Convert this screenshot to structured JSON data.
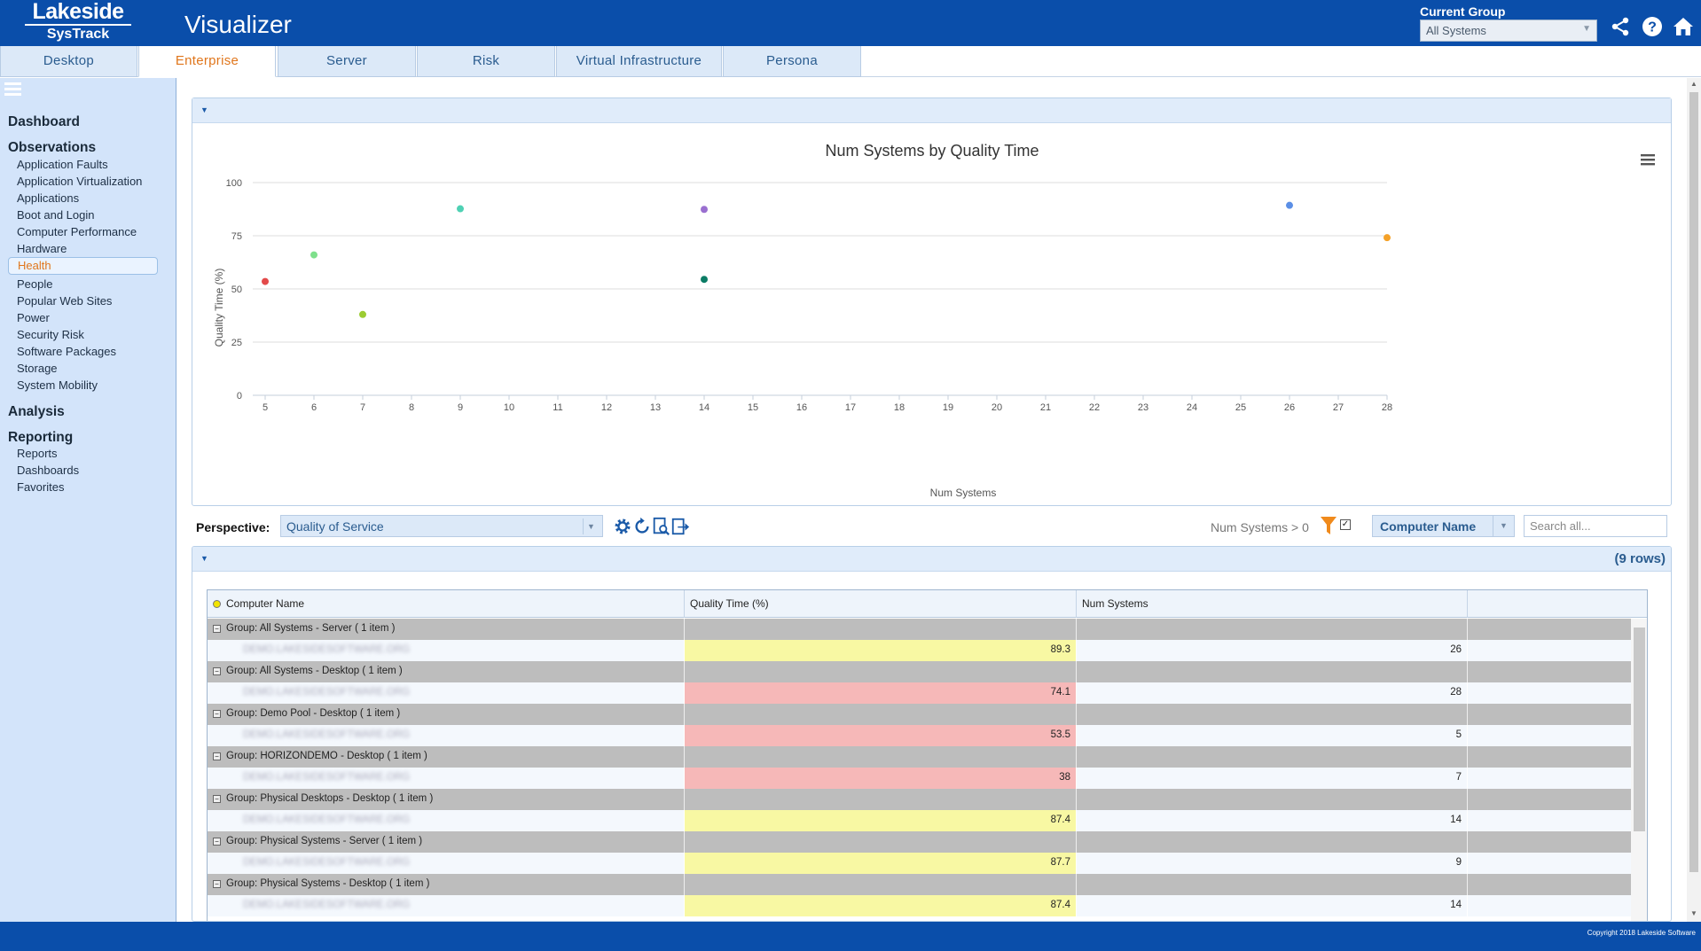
{
  "header": {
    "brand": "Lakeside",
    "product": "SysTrack",
    "title": "Visualizer",
    "group_label": "Current Group",
    "group_value": "All Systems",
    "icons": [
      "share-icon",
      "help-icon",
      "home-icon"
    ]
  },
  "tabs": [
    {
      "label": "Desktop",
      "active": false
    },
    {
      "label": "Enterprise",
      "active": true
    },
    {
      "label": "Server",
      "active": false
    },
    {
      "label": "Risk",
      "active": false
    },
    {
      "label": "Virtual Infrastructure",
      "active": false
    },
    {
      "label": "Persona",
      "active": false
    }
  ],
  "sidebar": {
    "dashboard": "Dashboard",
    "observations": "Observations",
    "observation_items": [
      "Application Faults",
      "Application Virtualization",
      "Applications",
      "Boot and Login",
      "Computer Performance",
      "Hardware",
      "Health",
      "People",
      "Popular Web Sites",
      "Power",
      "Security Risk",
      "Software Packages",
      "Storage",
      "System Mobility"
    ],
    "active_item": "Health",
    "analysis": "Analysis",
    "reporting": "Reporting",
    "reporting_items": [
      "Reports",
      "Dashboards",
      "Favorites"
    ]
  },
  "chart_data": {
    "type": "scatter",
    "title": "Num Systems by Quality Time",
    "xlabel": "Num Systems",
    "ylabel": "Quality Time (%)",
    "xlim": [
      5,
      28
    ],
    "ylim": [
      0,
      100
    ],
    "xticks": [
      5,
      6,
      7,
      8,
      9,
      10,
      11,
      12,
      13,
      14,
      15,
      16,
      17,
      18,
      19,
      20,
      21,
      22,
      23,
      24,
      25,
      26,
      27,
      28
    ],
    "yticks": [
      0,
      25,
      50,
      75,
      100
    ],
    "grid": true,
    "points": [
      {
        "x": 5,
        "y": 53.5,
        "color": "#e34a4a"
      },
      {
        "x": 6,
        "y": 66,
        "color": "#7ee08c"
      },
      {
        "x": 7,
        "y": 38,
        "color": "#9ccc32"
      },
      {
        "x": 9,
        "y": 87.7,
        "color": "#4fd1b4"
      },
      {
        "x": 14,
        "y": 87.4,
        "color": "#9a6fd0"
      },
      {
        "x": 14,
        "y": 54.5,
        "color": "#0b7c65"
      },
      {
        "x": 26,
        "y": 89.3,
        "color": "#5b8fe6"
      },
      {
        "x": 28,
        "y": 74.1,
        "color": "#f4a128"
      }
    ]
  },
  "toolbar": {
    "perspective_label": "Perspective:",
    "perspective_value": "Quality of Service",
    "tools": [
      "settings-icon",
      "refresh-icon",
      "report-icon",
      "export-icon"
    ],
    "filter_text": "Num Systems > 0",
    "sort_value": "Computer Name",
    "search_placeholder": "Search all..."
  },
  "table": {
    "row_count": "(9 rows)",
    "columns": [
      "Computer Name",
      "Quality Time (%)",
      "Num Systems"
    ],
    "groups": [
      {
        "label": "Group: All Systems - Server ( 1 item )",
        "computer": "DEMO.LAKESIDESOFTWARE.ORG",
        "quality": "89.3",
        "systems": "26",
        "status": "yellow"
      },
      {
        "label": "Group: All Systems - Desktop ( 1 item )",
        "computer": "DEMO.LAKESIDESOFTWARE.ORG",
        "quality": "74.1",
        "systems": "28",
        "status": "red"
      },
      {
        "label": "Group: Demo Pool - Desktop ( 1 item )",
        "computer": "DEMO.LAKESIDESOFTWARE.ORG",
        "quality": "53.5",
        "systems": "5",
        "status": "red"
      },
      {
        "label": "Group: HORIZONDEMO - Desktop ( 1 item )",
        "computer": "DEMO.LAKESIDESOFTWARE.ORG",
        "quality": "38",
        "systems": "7",
        "status": "red"
      },
      {
        "label": "Group: Physical Desktops - Desktop ( 1 item )",
        "computer": "DEMO.LAKESIDESOFTWARE.ORG",
        "quality": "87.4",
        "systems": "14",
        "status": "yellow"
      },
      {
        "label": "Group: Physical Systems - Server ( 1 item )",
        "computer": "DEMO.LAKESIDESOFTWARE.ORG",
        "quality": "87.7",
        "systems": "9",
        "status": "yellow"
      },
      {
        "label": "Group: Physical Systems - Desktop ( 1 item )",
        "computer": "DEMO.LAKESIDESOFTWARE.ORG",
        "quality": "87.4",
        "systems": "14",
        "status": "yellow"
      }
    ]
  },
  "footer": {
    "copyright": "Copyright 2018 Lakeside Software"
  }
}
